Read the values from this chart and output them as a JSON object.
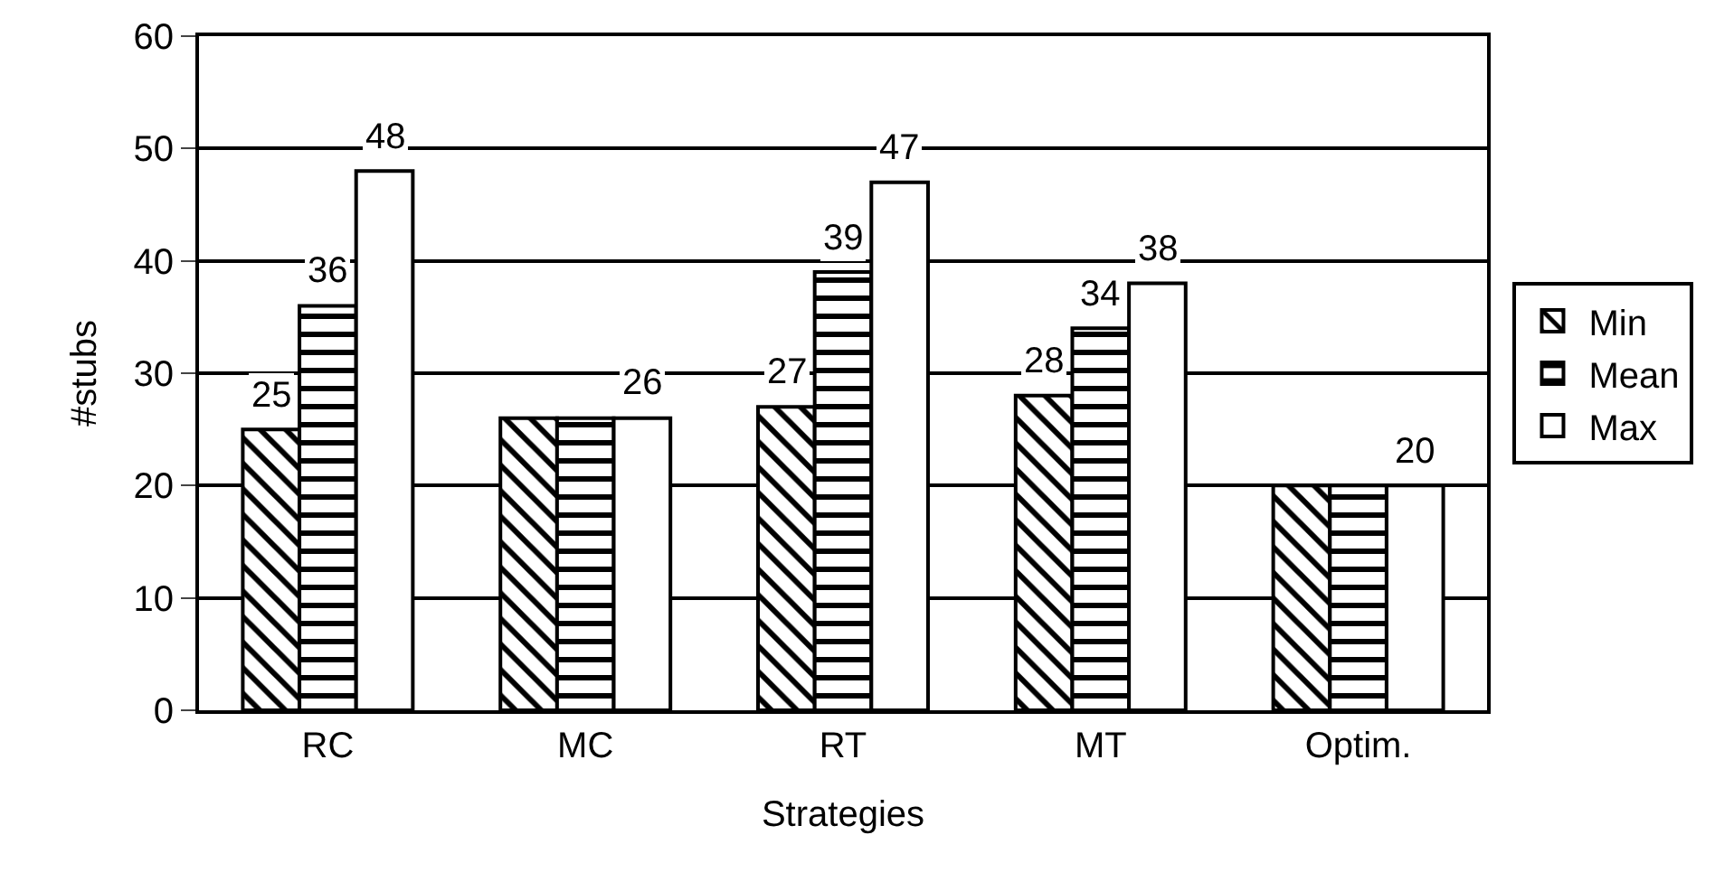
{
  "chart_data": {
    "type": "bar",
    "xlabel": "Strategies",
    "ylabel": "#stubs",
    "categories": [
      "RC",
      "MC",
      "RT",
      "MT",
      "Optim."
    ],
    "series": [
      {
        "name": "Min",
        "color": "#000000",
        "values": [
          25,
          26,
          27,
          28,
          20
        ],
        "value_labels": [
          "25",
          null,
          "27",
          "28",
          null
        ]
      },
      {
        "name": "Mean",
        "color": "#000000",
        "values": [
          36,
          26,
          39,
          34,
          20
        ],
        "value_labels": [
          "36",
          null,
          "39",
          "34",
          null
        ]
      },
      {
        "name": "Max",
        "color": "#ffffff",
        "values": [
          48,
          26,
          47,
          38,
          20
        ],
        "value_labels": [
          "48",
          "26",
          "47",
          "38",
          "20"
        ]
      }
    ],
    "ylim": [
      0,
      60
    ],
    "yticks": [
      0,
      10,
      20,
      30,
      40,
      50,
      60
    ],
    "grid": "y",
    "legend": "right"
  }
}
